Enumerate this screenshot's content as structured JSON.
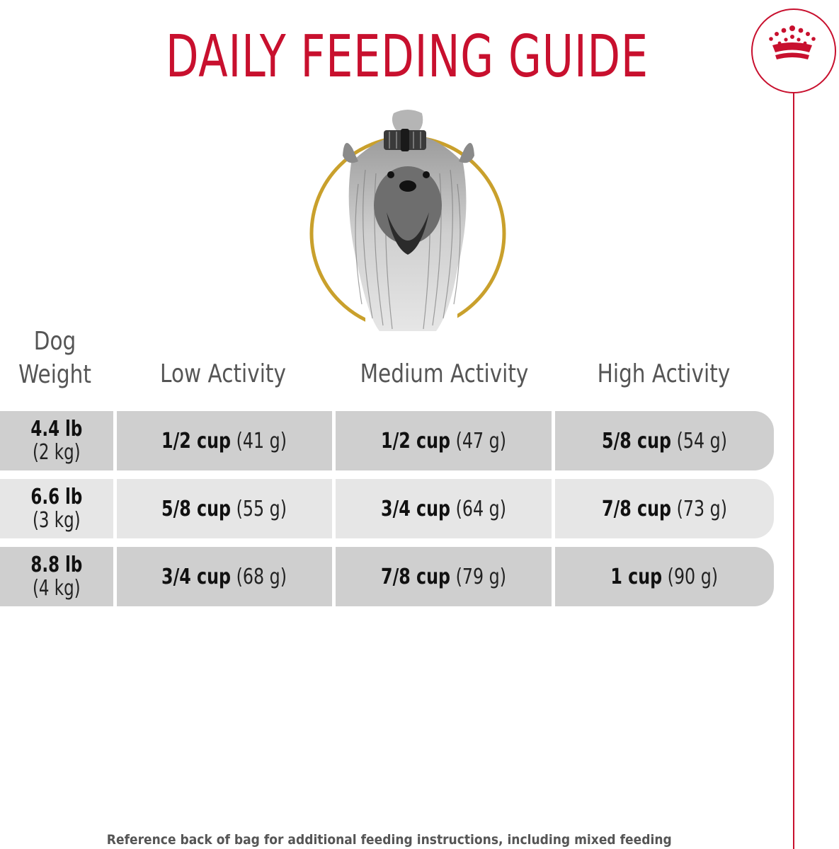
{
  "title": "DAILY FEEDING GUIDE",
  "header": {
    "weight_line1": "Dog",
    "weight_line2": "Weight",
    "low": "Low Activity",
    "medium": "Medium Activity",
    "high": "High Activity"
  },
  "rows": [
    {
      "weight_lb": "4.4 lb",
      "weight_kg": "(2 kg)",
      "low_cup": "1/2 cup",
      "low_g": "(41 g)",
      "medium_cup": "1/2 cup",
      "medium_g": "(47 g)",
      "high_cup": "5/8 cup",
      "high_g": "(54 g)"
    },
    {
      "weight_lb": "6.6 lb",
      "weight_kg": "(3 kg)",
      "low_cup": "5/8 cup",
      "low_g": "(55 g)",
      "medium_cup": "3/4 cup",
      "medium_g": "(64 g)",
      "high_cup": "7/8 cup",
      "high_g": "(73 g)"
    },
    {
      "weight_lb": "8.8 lb",
      "weight_kg": "(4 kg)",
      "low_cup": "3/4 cup",
      "low_g": "(68 g)",
      "medium_cup": "7/8 cup",
      "medium_g": "(79 g)",
      "high_cup": "1 cup",
      "high_g": "(90 g)"
    }
  ],
  "footnote": "Reference back of bag for additional feeding instructions, including mixed feeding",
  "colors": {
    "brand_red": "#c8102e",
    "gold_ring": "#c9a02c",
    "row_dark": "#cfcfcf",
    "row_light": "#e6e6e6",
    "header_gray": "#555555"
  },
  "icons": {
    "logo": "royal-crown-icon",
    "illustration": "yorkshire-terrier-portrait"
  }
}
